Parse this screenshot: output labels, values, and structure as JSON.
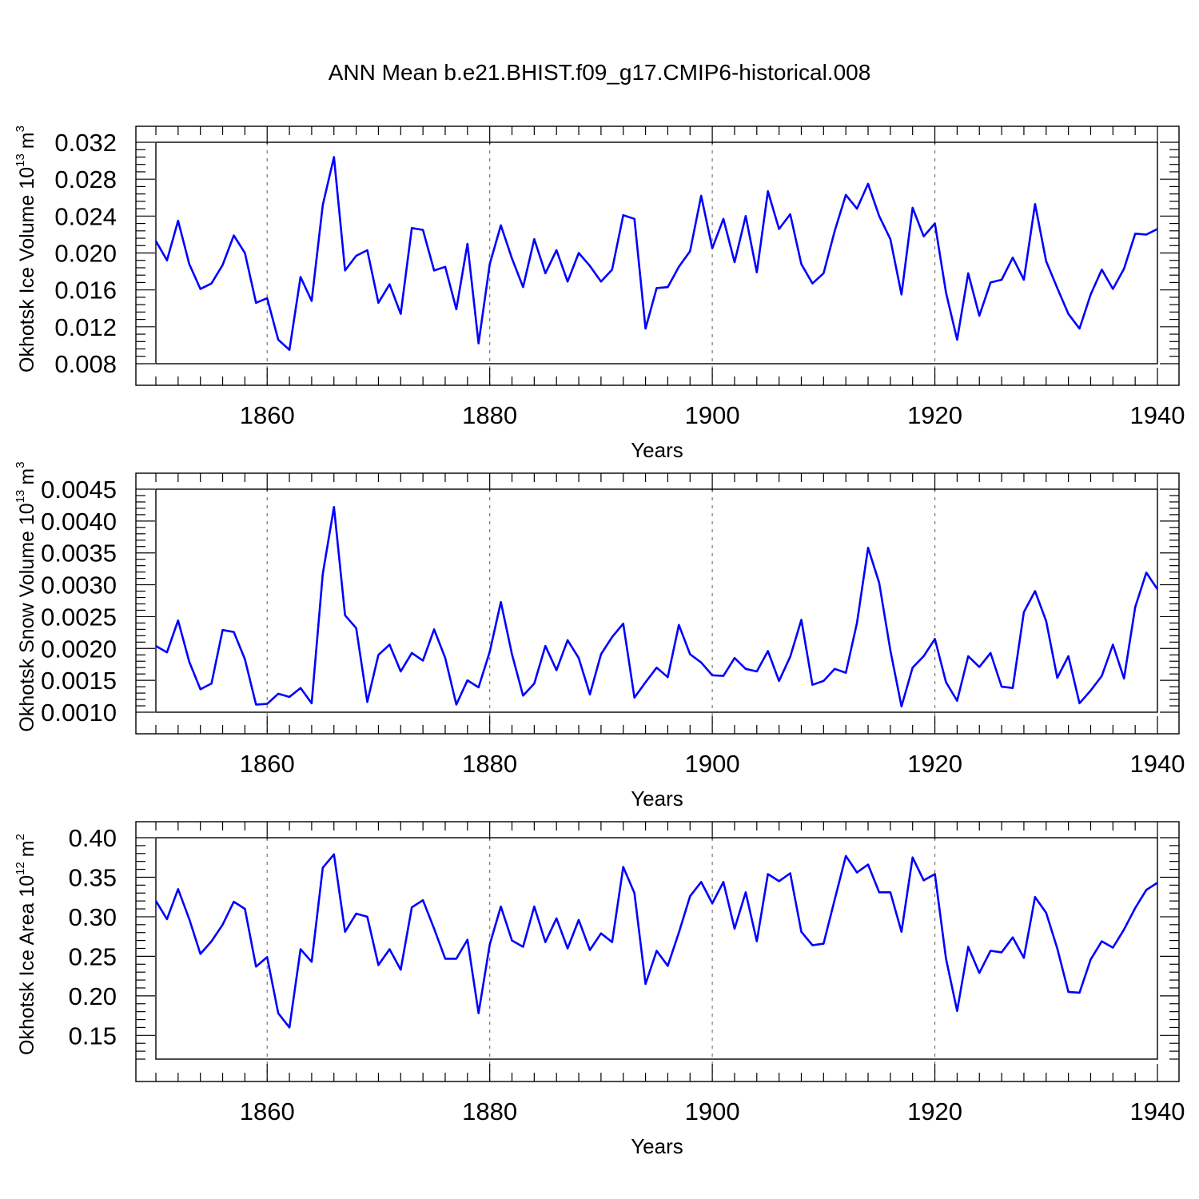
{
  "title": "ANN Mean b.e21.BHIST.f09_g17.CMIP6-historical.008",
  "colors": {
    "line": "#0000ff",
    "grid": "#777777",
    "axis": "#000000"
  },
  "chart_data": [
    {
      "type": "line",
      "title": "ANN Mean b.e21.BHIST.f09_g17.CMIP6-historical.008",
      "xlabel": "Years",
      "ylabel": {
        "text": "Okhotsk Ice Volume 10",
        "exp": "13",
        "unit": "m",
        "unit_exp": "3"
      },
      "xlim": [
        1850,
        1940
      ],
      "ylim": [
        0.008,
        0.032
      ],
      "yticks": [
        "0.008",
        "0.012",
        "0.016",
        "0.020",
        "0.024",
        "0.028",
        "0.032"
      ],
      "xticks": [
        "1860",
        "1880",
        "1900",
        "1920",
        "1940"
      ],
      "grid_x": [
        1860,
        1880,
        1900,
        1920
      ],
      "start_year": 1850,
      "values": [
        0.0213,
        0.0192,
        0.0235,
        0.0188,
        0.0161,
        0.0167,
        0.0187,
        0.0219,
        0.02,
        0.0146,
        0.0151,
        0.0106,
        0.0095,
        0.0174,
        0.0148,
        0.0252,
        0.0304,
        0.0181,
        0.0197,
        0.0203,
        0.0146,
        0.0166,
        0.0134,
        0.0227,
        0.0225,
        0.0181,
        0.0185,
        0.0139,
        0.021,
        0.0102,
        0.0188,
        0.023,
        0.0194,
        0.0163,
        0.0215,
        0.0178,
        0.0203,
        0.0169,
        0.02,
        0.0186,
        0.0169,
        0.0182,
        0.0241,
        0.0237,
        0.0118,
        0.0162,
        0.0163,
        0.0185,
        0.0202,
        0.0262,
        0.0205,
        0.0237,
        0.019,
        0.024,
        0.0179,
        0.0267,
        0.0226,
        0.0242,
        0.0188,
        0.0167,
        0.0178,
        0.0224,
        0.0263,
        0.0248,
        0.0275,
        0.024,
        0.0215,
        0.0155,
        0.0249,
        0.0218,
        0.0232,
        0.0157,
        0.0106,
        0.0178,
        0.0132,
        0.0168,
        0.0171,
        0.0195,
        0.0171,
        0.0253,
        0.0191,
        0.0162,
        0.0134,
        0.0118,
        0.0155,
        0.0182,
        0.0161,
        0.0183,
        0.0221,
        0.022,
        0.0226
      ]
    },
    {
      "type": "line",
      "xlabel": "Years",
      "ylabel": {
        "text": "Okhotsk Snow Volume 10",
        "exp": "13",
        "unit": "m",
        "unit_exp": "3"
      },
      "xlim": [
        1850,
        1940
      ],
      "ylim": [
        0.001,
        0.0045
      ],
      "yticks": [
        "0.0010",
        "0.0015",
        "0.0020",
        "0.0025",
        "0.0030",
        "0.0035",
        "0.0040",
        "0.0045"
      ],
      "xticks": [
        "1860",
        "1880",
        "1900",
        "1920",
        "1940"
      ],
      "grid_x": [
        1860,
        1880,
        1900,
        1920
      ],
      "start_year": 1850,
      "values": [
        0.00204,
        0.00194,
        0.00244,
        0.00179,
        0.00136,
        0.00145,
        0.00229,
        0.00226,
        0.00183,
        0.00112,
        0.00113,
        0.00129,
        0.00124,
        0.00138,
        0.00114,
        0.00317,
        0.00422,
        0.00252,
        0.00232,
        0.00116,
        0.0019,
        0.00206,
        0.00164,
        0.00193,
        0.00181,
        0.0023,
        0.00185,
        0.00112,
        0.0015,
        0.00139,
        0.00195,
        0.00273,
        0.00191,
        0.00126,
        0.00145,
        0.00204,
        0.00166,
        0.00213,
        0.00185,
        0.00128,
        0.00191,
        0.00218,
        0.00239,
        0.00123,
        0.00147,
        0.0017,
        0.00155,
        0.00237,
        0.00191,
        0.00178,
        0.00158,
        0.00157,
        0.00185,
        0.00168,
        0.00164,
        0.00196,
        0.00149,
        0.00187,
        0.00245,
        0.00143,
        0.00149,
        0.00168,
        0.00162,
        0.0024,
        0.00358,
        0.00303,
        0.00197,
        0.00109,
        0.0017,
        0.00188,
        0.00215,
        0.00147,
        0.00118,
        0.00188,
        0.00171,
        0.00193,
        0.0014,
        0.00138,
        0.00257,
        0.0029,
        0.00243,
        0.00154,
        0.00188,
        0.00114,
        0.00134,
        0.00157,
        0.00206,
        0.00153,
        0.00265,
        0.00319,
        0.00293
      ]
    },
    {
      "type": "line",
      "xlabel": "Years",
      "ylabel": {
        "text": "Okhotsk Ice Area 10",
        "exp": "12",
        "unit": "m",
        "unit_exp": "2"
      },
      "xlim": [
        1850,
        1940
      ],
      "ylim": [
        0.12,
        0.4
      ],
      "yticks": [
        "0.15",
        "0.20",
        "0.25",
        "0.30",
        "0.35",
        "0.40"
      ],
      "xticks": [
        "1860",
        "1880",
        "1900",
        "1920",
        "1940"
      ],
      "grid_x": [
        1860,
        1880,
        1900,
        1920
      ],
      "start_year": 1850,
      "values": [
        0.32,
        0.297,
        0.335,
        0.297,
        0.253,
        0.269,
        0.29,
        0.319,
        0.31,
        0.237,
        0.249,
        0.178,
        0.16,
        0.259,
        0.243,
        0.362,
        0.379,
        0.281,
        0.304,
        0.3,
        0.239,
        0.259,
        0.233,
        0.312,
        0.321,
        0.285,
        0.247,
        0.247,
        0.271,
        0.178,
        0.265,
        0.313,
        0.27,
        0.262,
        0.313,
        0.268,
        0.298,
        0.26,
        0.296,
        0.258,
        0.279,
        0.268,
        0.363,
        0.33,
        0.215,
        0.257,
        0.238,
        0.28,
        0.326,
        0.344,
        0.317,
        0.344,
        0.285,
        0.331,
        0.269,
        0.354,
        0.345,
        0.355,
        0.281,
        0.264,
        0.266,
        0.322,
        0.377,
        0.356,
        0.366,
        0.331,
        0.331,
        0.281,
        0.375,
        0.346,
        0.354,
        0.247,
        0.181,
        0.262,
        0.229,
        0.257,
        0.255,
        0.274,
        0.248,
        0.325,
        0.305,
        0.26,
        0.205,
        0.204,
        0.246,
        0.269,
        0.261,
        0.284,
        0.311,
        0.334,
        0.343
      ]
    }
  ]
}
